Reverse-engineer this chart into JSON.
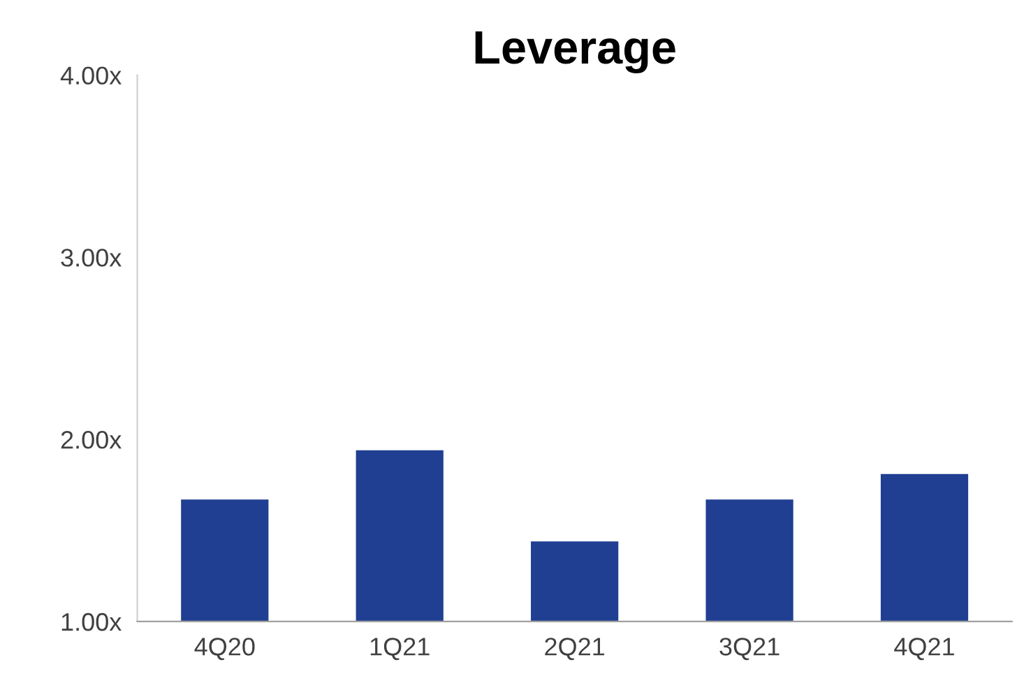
{
  "chart_data": {
    "type": "bar",
    "title": "Leverage",
    "categories": [
      "4Q20",
      "1Q21",
      "2Q21",
      "3Q21",
      "4Q21"
    ],
    "values": [
      1.67,
      1.94,
      1.44,
      1.67,
      1.81
    ],
    "color": "#203f92",
    "ylim": [
      1,
      4
    ],
    "yticks": [
      {
        "value": 1,
        "label": "1.00x"
      },
      {
        "value": 2,
        "label": "2.00x"
      },
      {
        "value": 3,
        "label": "3.00x"
      },
      {
        "value": 4,
        "label": "4.00x"
      }
    ],
    "grid": false
  }
}
